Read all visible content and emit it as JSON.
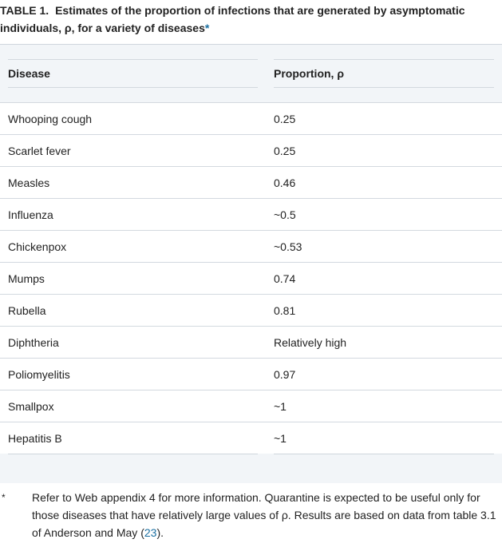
{
  "caption": {
    "label": "TABLE 1.",
    "text": "Estimates of the proportion of infections that are generated by asymptomatic individuals, ρ, for a variety of diseases",
    "footnote_marker": "*"
  },
  "table": {
    "headers": [
      "Disease",
      "Proportion, ρ"
    ],
    "rows": [
      [
        "Whooping cough",
        "0.25"
      ],
      [
        "Scarlet fever",
        "0.25"
      ],
      [
        "Measles",
        "0.46"
      ],
      [
        "Influenza",
        "~0.5"
      ],
      [
        "Chickenpox",
        "~0.53"
      ],
      [
        "Mumps",
        "0.74"
      ],
      [
        "Rubella",
        "0.81"
      ],
      [
        "Diphtheria",
        "Relatively high"
      ],
      [
        "Poliomyelitis",
        "0.97"
      ],
      [
        "Smallpox",
        "~1"
      ],
      [
        "Hepatitis B",
        "~1"
      ]
    ]
  },
  "footnote": {
    "marker": "*",
    "text_before": "Refer to Web appendix 4 for more information. Quarantine is expected to be useful only for those diseases that have relatively large values of ρ. Results are based on data from table 3.1 of Anderson and May (",
    "ref": "23",
    "text_after": ")."
  },
  "colors": {
    "band": "#f2f5f8",
    "rule": "#d3d9df",
    "link": "#1a6fa1"
  }
}
